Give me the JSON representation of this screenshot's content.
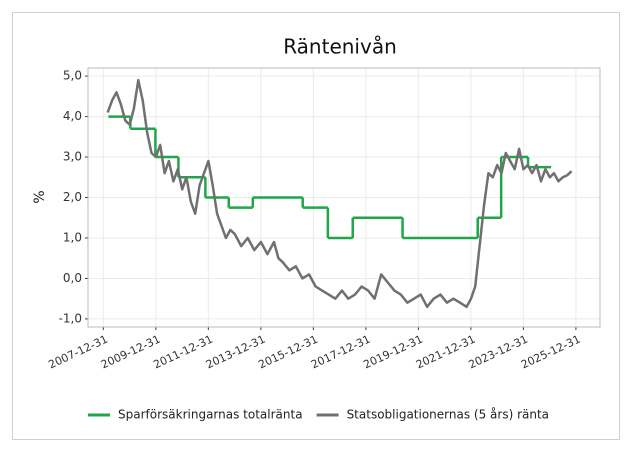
{
  "chart_data": {
    "type": "line",
    "title": "Räntenivån",
    "y_label": "%",
    "xlim": [
      "2007-06-01",
      "2026-12-01"
    ],
    "xticks": [
      "2007-12-31",
      "2009-12-31",
      "2011-12-31",
      "2013-12-31",
      "2015-12-31",
      "2017-12-31",
      "2019-12-31",
      "2021-12-31",
      "2023-12-31",
      "2025-12-31"
    ],
    "ylim": [
      -1.2,
      5.2
    ],
    "yticks": [
      {
        "value": 5,
        "label": "5,0"
      },
      {
        "value": 4,
        "label": "4,0"
      },
      {
        "value": 3,
        "label": "3,0"
      },
      {
        "value": 2,
        "label": "2,0"
      },
      {
        "value": 1,
        "label": "1,0"
      },
      {
        "value": 0,
        "label": "0,0"
      },
      {
        "value": -1,
        "label": "-1,0"
      }
    ],
    "grid": true,
    "legend": "bottom",
    "series": [
      {
        "name": "Sparförsäkringarnas totalränta",
        "color": "#1fa64a",
        "drawstyle": "steps-post",
        "x": [
          "2008-03-10",
          "2009-01-10",
          "2009-12-25",
          "2010-11-10",
          "2011-11-20",
          "2012-10-10",
          "2013-09-10",
          "2015-08-05",
          "2016-07-20",
          "2017-07-01",
          "2019-05-25",
          "2022-04-05",
          "2023-02-25",
          "2024-03-05",
          "2025-01-20"
        ],
        "values": [
          4.0,
          3.7,
          3.0,
          2.5,
          2.0,
          1.75,
          2.0,
          1.75,
          1.0,
          1.5,
          1.0,
          1.5,
          3.0,
          2.75,
          2.75
        ]
      },
      {
        "name": "Statsobligationernas (5 års) ränta",
        "color": "#707070",
        "drawstyle": "default",
        "x": [
          "2008-03-01",
          "2008-05-01",
          "2008-07-01",
          "2008-09-01",
          "2008-11-01",
          "2009-01-01",
          "2009-03-01",
          "2009-05-01",
          "2009-07-01",
          "2009-09-01",
          "2009-11-01",
          "2010-01-01",
          "2010-03-01",
          "2010-05-01",
          "2010-07-01",
          "2010-09-01",
          "2010-11-01",
          "2011-01-01",
          "2011-03-01",
          "2011-05-01",
          "2011-07-01",
          "2011-09-01",
          "2011-11-01",
          "2012-01-01",
          "2012-03-01",
          "2012-05-01",
          "2012-07-01",
          "2012-09-01",
          "2012-11-01",
          "2013-01-01",
          "2013-04-01",
          "2013-07-01",
          "2013-10-01",
          "2014-01-01",
          "2014-04-01",
          "2014-07-01",
          "2014-09-01",
          "2014-11-01",
          "2015-02-01",
          "2015-05-01",
          "2015-08-01",
          "2015-11-01",
          "2016-02-01",
          "2016-05-01",
          "2016-08-01",
          "2016-11-01",
          "2017-02-01",
          "2017-05-01",
          "2017-08-01",
          "2017-11-01",
          "2018-02-01",
          "2018-05-01",
          "2018-08-01",
          "2018-11-01",
          "2019-02-01",
          "2019-05-01",
          "2019-08-01",
          "2019-11-01",
          "2020-02-01",
          "2020-05-01",
          "2020-08-01",
          "2020-11-01",
          "2021-02-01",
          "2021-05-01",
          "2021-08-01",
          "2021-11-01",
          "2022-01-01",
          "2022-03-01",
          "2022-05-01",
          "2022-07-01",
          "2022-09-01",
          "2022-11-01",
          "2023-01-01",
          "2023-03-01",
          "2023-05-01",
          "2023-07-01",
          "2023-09-01",
          "2023-11-01",
          "2024-01-01",
          "2024-03-01",
          "2024-05-01",
          "2024-07-01",
          "2024-09-01",
          "2024-11-01",
          "2025-01-01",
          "2025-03-01",
          "2025-05-01",
          "2025-07-01",
          "2025-09-01",
          "2025-11-01"
        ],
        "values": [
          4.1,
          4.4,
          4.6,
          4.3,
          3.9,
          3.8,
          4.2,
          4.9,
          4.4,
          3.6,
          3.1,
          3.0,
          3.3,
          2.6,
          2.9,
          2.4,
          2.7,
          2.2,
          2.5,
          1.9,
          1.6,
          2.3,
          2.6,
          2.9,
          2.3,
          1.6,
          1.3,
          1.0,
          1.2,
          1.1,
          0.8,
          1.0,
          0.7,
          0.9,
          0.6,
          0.9,
          0.5,
          0.4,
          0.2,
          0.3,
          0.0,
          0.1,
          -0.2,
          -0.3,
          -0.4,
          -0.5,
          -0.3,
          -0.5,
          -0.4,
          -0.2,
          -0.3,
          -0.5,
          0.1,
          -0.1,
          -0.3,
          -0.4,
          -0.6,
          -0.5,
          -0.4,
          -0.7,
          -0.5,
          -0.4,
          -0.6,
          -0.5,
          -0.6,
          -0.7,
          -0.5,
          -0.2,
          0.8,
          1.8,
          2.6,
          2.5,
          2.8,
          2.6,
          3.1,
          2.9,
          2.7,
          3.2,
          2.7,
          2.8,
          2.6,
          2.8,
          2.4,
          2.7,
          2.5,
          2.6,
          2.4,
          2.5,
          2.55,
          2.65
        ]
      }
    ]
  }
}
